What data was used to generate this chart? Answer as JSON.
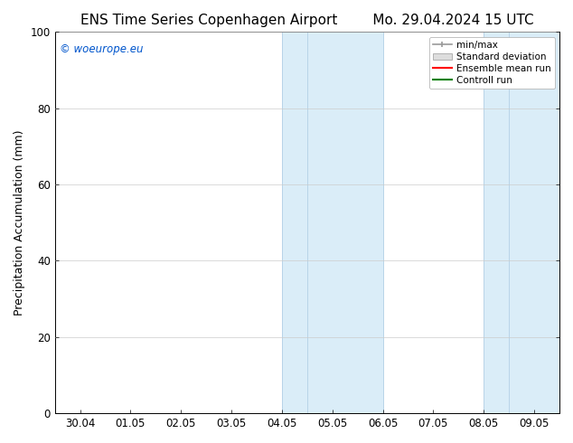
{
  "title_left": "ENS Time Series Copenhagen Airport",
  "title_right": "Mo. 29.04.2024 15 UTC",
  "ylabel": "Precipitation Accumulation (mm)",
  "ylim": [
    0,
    100
  ],
  "yticks": [
    0,
    20,
    40,
    60,
    80,
    100
  ],
  "x_tick_labels": [
    "30.04",
    "01.05",
    "02.05",
    "03.05",
    "04.05",
    "05.05",
    "06.05",
    "07.05",
    "08.05",
    "09.05"
  ],
  "x_tick_positions": [
    0,
    1,
    2,
    3,
    4,
    5,
    6,
    7,
    8,
    9
  ],
  "shaded_band1_start": 4.0,
  "shaded_band1_mid": 4.5,
  "shaded_band1_end": 6.0,
  "shaded_band2_start": 8.0,
  "shaded_band2_mid": 8.5,
  "shaded_band2_end": 9.5,
  "shade_color": "#daedf8",
  "divider_color": "#b8d4e8",
  "background_color": "#ffffff",
  "plot_bg_color": "#ffffff",
  "watermark_text": "© woeurope.eu",
  "watermark_color": "#0055cc",
  "legend_items": [
    {
      "label": "min/max",
      "color": "#aaaaaa"
    },
    {
      "label": "Standard deviation",
      "color": "#cccccc"
    },
    {
      "label": "Ensemble mean run",
      "color": "#ff0000"
    },
    {
      "label": "Controll run",
      "color": "#008000"
    }
  ],
  "title_fontsize": 11,
  "tick_label_fontsize": 8.5,
  "ylabel_fontsize": 9,
  "legend_fontsize": 7.5,
  "xlim_left": -0.5,
  "xlim_right": 9.5
}
